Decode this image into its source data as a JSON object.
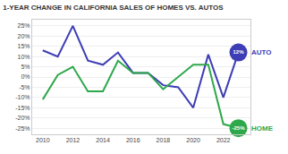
{
  "chart_data": {
    "type": "line",
    "title": "1-YEAR CHANGE IN CALIFORNIA SALES OF HOMES VS. AUTOS",
    "x": [
      2010,
      2011,
      2012,
      2013,
      2014,
      2015,
      2016,
      2017,
      2018,
      2019,
      2020,
      2021,
      2022,
      2023
    ],
    "series": [
      {
        "name": "AUTO",
        "color": "#3d3db5",
        "values": [
          13,
          10,
          25,
          8,
          6,
          12,
          2,
          2,
          -4,
          -5,
          -15,
          11,
          -10,
          12
        ],
        "value_labels": [
          null,
          null,
          null,
          null,
          null,
          null,
          null,
          null,
          null,
          null,
          null,
          null,
          null,
          "12%"
        ]
      },
      {
        "name": "HOME",
        "color": "#2da84a",
        "values": [
          -11,
          1,
          5,
          -7,
          -7,
          8,
          2,
          2,
          -6,
          0,
          6,
          6,
          -23,
          -25
        ],
        "value_labels": [
          null,
          null,
          null,
          null,
          null,
          null,
          null,
          null,
          null,
          null,
          null,
          null,
          null,
          "-25%"
        ]
      }
    ],
    "xlim": [
      2009.3,
      2023.8
    ],
    "xticks": [
      2010,
      2012,
      2014,
      2016,
      2018,
      2020,
      2022
    ],
    "ylim": [
      -28,
      28
    ],
    "yticks": [
      {
        "value": -25,
        "label": "-25%"
      },
      {
        "value": -20,
        "label": "-20%"
      },
      {
        "value": -15,
        "label": "-15%"
      },
      {
        "value": -10,
        "label": "-10%"
      },
      {
        "value": -5,
        "label": "-5%"
      },
      {
        "value": 0,
        "label": "0%"
      },
      {
        "value": 5,
        "label": "5%"
      },
      {
        "value": 10,
        "label": "10%"
      },
      {
        "value": 15,
        "label": "15%"
      },
      {
        "value": 20,
        "label": "20%"
      },
      {
        "value": 25,
        "label": "25%"
      }
    ],
    "grid": true,
    "data_labels": true
  }
}
